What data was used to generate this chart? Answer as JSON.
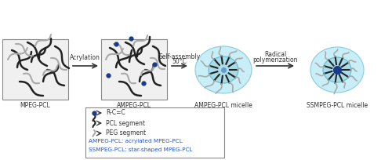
{
  "bg_color": "#ffffff",
  "box1_color": "#e8e8e8",
  "light_blue": "#a8dce8",
  "lighter_blue": "#c8eef8",
  "dark_blue_dot": "#1a3a8a",
  "arrow_color": "#333333",
  "label_color": "#333333",
  "blue_text_color": "#2255cc",
  "pcl_color": "#222222",
  "peg_color": "#aaaaaa",
  "labels": [
    "MPEG-PCL",
    "AMPEG-PCL",
    "AMPEG-PCL micelle",
    "SSMPEG-PCL micelle"
  ],
  "step_labels": [
    "Acrylation",
    "Self-assembly\n50°C",
    "Radical\npolymerization"
  ],
  "legend_lines": [
    "R-C=C",
    "PCL segment",
    "PEG segment"
  ],
  "legend_abbrev": [
    "AMPEG-PCL: acrylated MPEG-PCL",
    "SSMPEG-PCL: star-shaped MPEG-PCL"
  ]
}
